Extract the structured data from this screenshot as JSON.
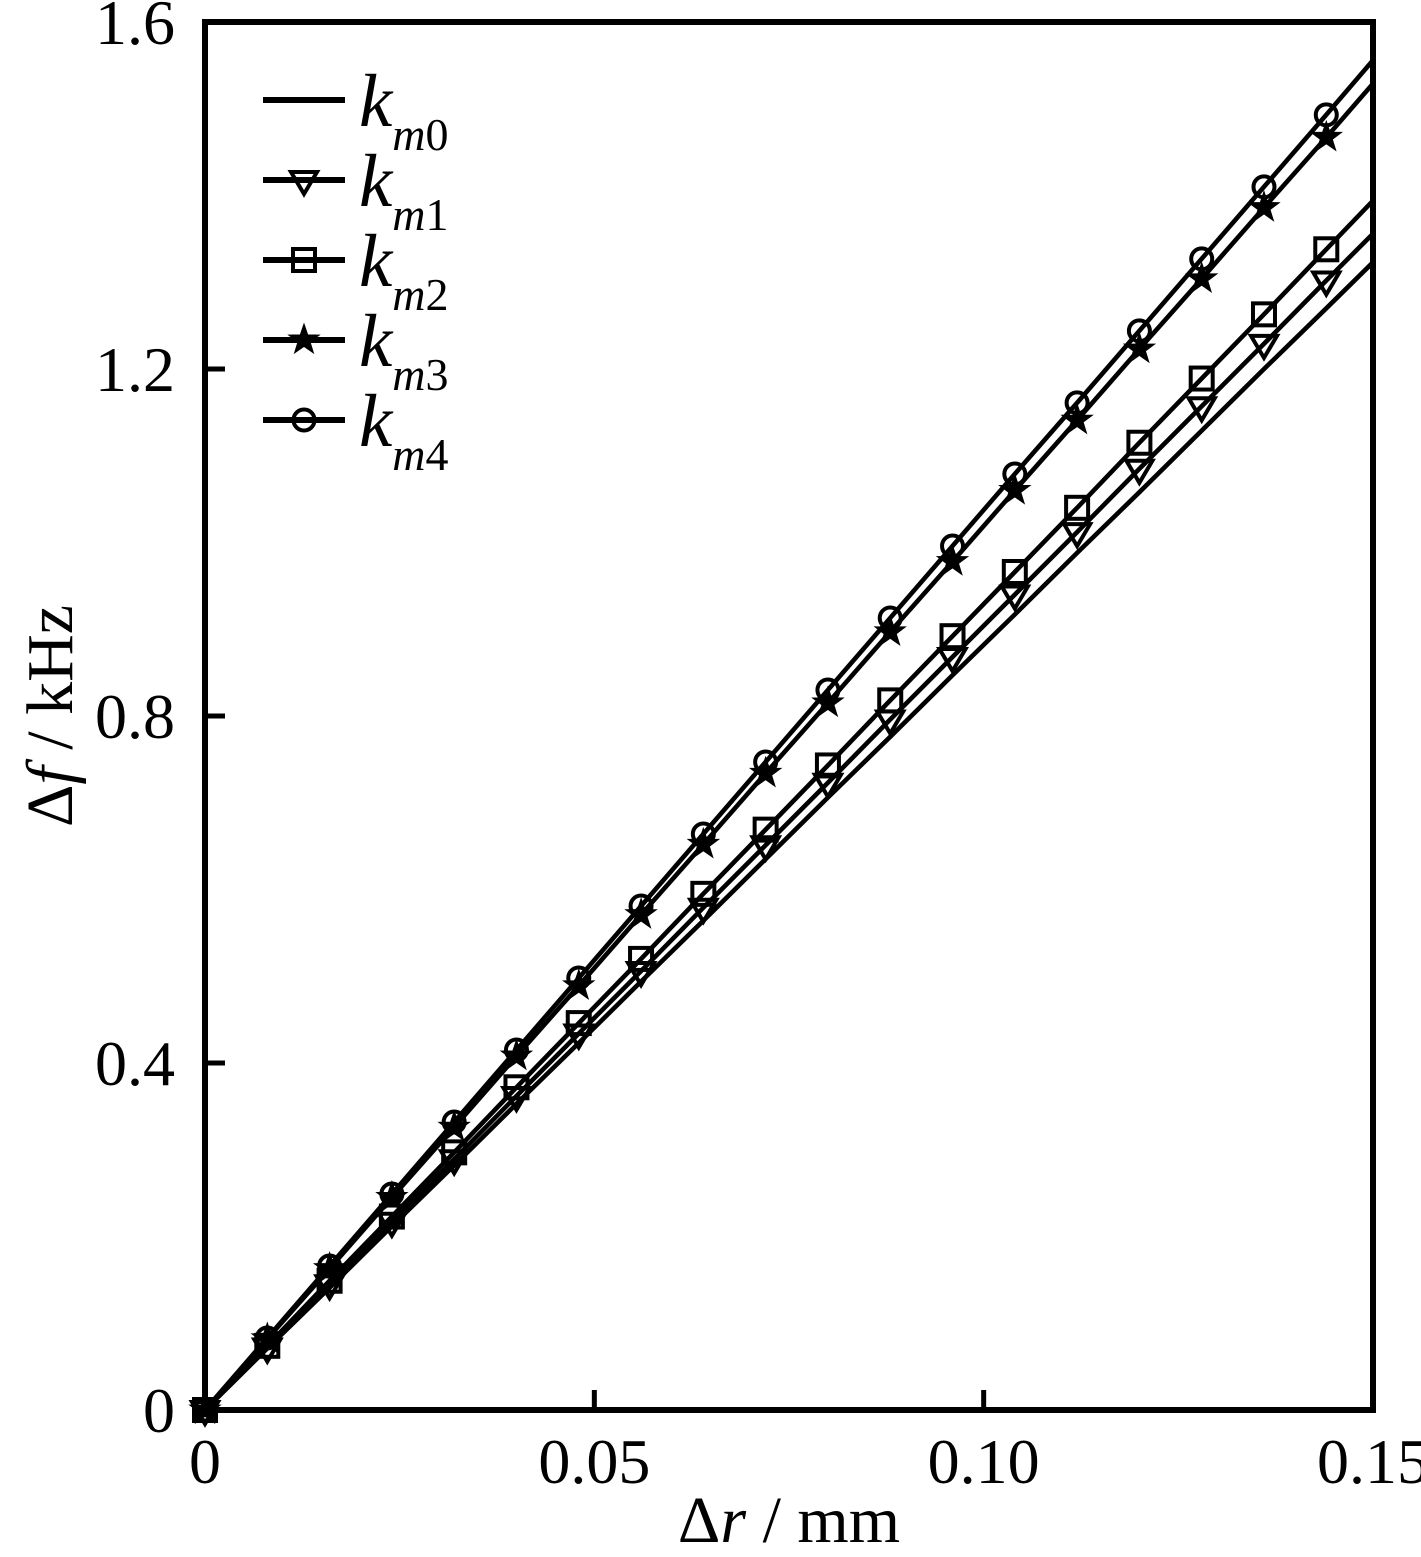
{
  "figure": {
    "background": "#ffffff",
    "ink_color": "#000000"
  },
  "chart_data": {
    "type": "line",
    "title": "",
    "xlabel_parts": [
      {
        "text": "Δ",
        "italic": false
      },
      {
        "text": "r",
        "italic": true
      },
      {
        "text": " / mm",
        "italic": false
      }
    ],
    "ylabel_parts": [
      {
        "text": "Δ",
        "italic": false
      },
      {
        "text": "f",
        "italic": true
      },
      {
        "text": " / kHz",
        "italic": false
      }
    ],
    "xlim": [
      0,
      0.15
    ],
    "ylim": [
      0,
      1.6
    ],
    "grid": false,
    "legend_position": "upper-left-inside",
    "x_ticks": [
      {
        "value": 0,
        "label": "0"
      },
      {
        "value": 0.05,
        "label": "0.05"
      },
      {
        "value": 0.1,
        "label": "0.10"
      },
      {
        "value": 0.15,
        "label": "0.15"
      }
    ],
    "y_ticks": [
      {
        "value": 0,
        "label": "0"
      },
      {
        "value": 0.4,
        "label": "0.4"
      },
      {
        "value": 0.8,
        "label": "0.8"
      },
      {
        "value": 1.2,
        "label": "1.2"
      },
      {
        "value": 1.6,
        "label": "1.6"
      }
    ],
    "x": [
      0,
      0.008,
      0.016,
      0.024,
      0.032,
      0.04,
      0.048,
      0.056,
      0.064,
      0.072,
      0.08,
      0.088,
      0.096,
      0.104,
      0.112,
      0.12,
      0.128,
      0.136,
      0.144
    ],
    "x_line_end": 0.15,
    "series": [
      {
        "id": "km0",
        "label": {
          "base": "k",
          "sub": "m0"
        },
        "marker": "none",
        "slope_kHz_per_mm": 8.82,
        "values": [
          0,
          0.071,
          0.141,
          0.212,
          0.282,
          0.353,
          0.423,
          0.494,
          0.564,
          0.635,
          0.706,
          0.776,
          0.847,
          0.917,
          0.988,
          1.058,
          1.129,
          1.2,
          1.27
        ],
        "value_at_line_end": 1.323
      },
      {
        "id": "km1",
        "label": {
          "base": "k",
          "sub": "m1"
        },
        "marker": "triangle-down",
        "slope_kHz_per_mm": 9.04,
        "values": [
          0,
          0.072,
          0.145,
          0.217,
          0.289,
          0.362,
          0.434,
          0.506,
          0.579,
          0.651,
          0.723,
          0.796,
          0.868,
          0.94,
          1.012,
          1.085,
          1.157,
          1.229,
          1.302
        ],
        "value_at_line_end": 1.356
      },
      {
        "id": "km2",
        "label": {
          "base": "k",
          "sub": "m2"
        },
        "marker": "square",
        "slope_kHz_per_mm": 9.29,
        "values": [
          0,
          0.074,
          0.149,
          0.223,
          0.297,
          0.372,
          0.446,
          0.52,
          0.595,
          0.669,
          0.743,
          0.818,
          0.892,
          0.966,
          1.04,
          1.115,
          1.189,
          1.263,
          1.338
        ],
        "value_at_line_end": 1.394
      },
      {
        "id": "km3",
        "label": {
          "base": "k",
          "sub": "m3"
        },
        "marker": "star",
        "slope_kHz_per_mm": 10.19,
        "values": [
          0,
          0.082,
          0.163,
          0.245,
          0.326,
          0.408,
          0.489,
          0.571,
          0.652,
          0.734,
          0.815,
          0.897,
          0.978,
          1.06,
          1.141,
          1.223,
          1.304,
          1.386,
          1.467
        ],
        "value_at_line_end": 1.529
      },
      {
        "id": "km4",
        "label": {
          "base": "k",
          "sub": "m4"
        },
        "marker": "circle",
        "slope_kHz_per_mm": 10.37,
        "values": [
          0,
          0.083,
          0.166,
          0.249,
          0.332,
          0.415,
          0.498,
          0.581,
          0.664,
          0.747,
          0.83,
          0.913,
          0.996,
          1.079,
          1.161,
          1.244,
          1.327,
          1.41,
          1.493
        ],
        "value_at_line_end": 1.556
      }
    ]
  }
}
